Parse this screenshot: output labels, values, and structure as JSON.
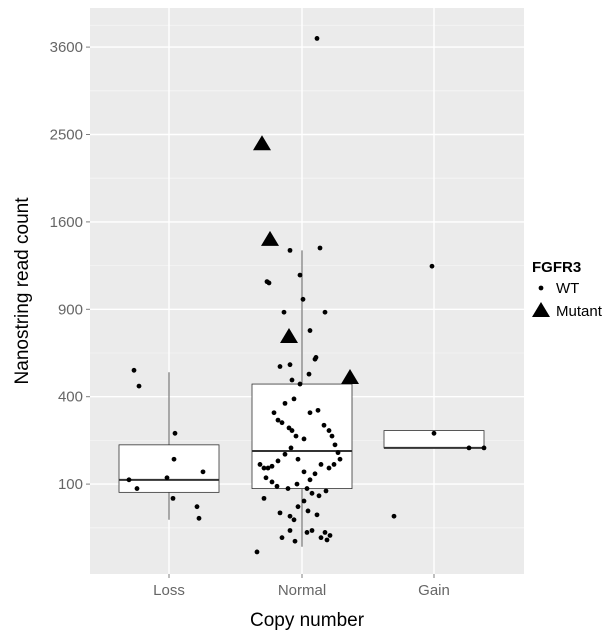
{
  "chart_data": {
    "type": "box+scatter",
    "xlabel": "Copy number",
    "ylabel": "Nanostring read count",
    "y_scale": "sqrt",
    "ylim": [
      0,
      4000
    ],
    "y_ticks": [
      100,
      400,
      900,
      1600,
      2500,
      3600
    ],
    "y_tick_labels": [
      "100",
      "400",
      "900",
      "1600",
      "2500",
      "3600"
    ],
    "categories": [
      "Loss",
      "Normal",
      "Gain"
    ],
    "grid": true,
    "legend": {
      "title": "FGFR3",
      "position": "right",
      "entries": [
        {
          "label": "WT",
          "shape": "dot"
        },
        {
          "label": "Mutant",
          "shape": "triangle"
        }
      ]
    },
    "boxes": [
      {
        "category": "Loss",
        "q1": 82,
        "median": 110,
        "q3": 210,
        "whisker_low": 35,
        "whisker_high": 520
      },
      {
        "category": "Normal",
        "q1": 90,
        "median": 190,
        "q3": 460,
        "whisker_low": 8,
        "whisker_high": 1350
      },
      {
        "category": "Gain",
        "q1": 200,
        "median": 200,
        "q3": 260,
        "whisker_low": 200,
        "whisker_high": 260
      }
    ],
    "points": [
      {
        "category": "Loss",
        "offset": -0.35,
        "y": 530,
        "group": "WT"
      },
      {
        "category": "Loss",
        "offset": -0.3,
        "y": 450,
        "group": "WT"
      },
      {
        "category": "Loss",
        "offset": -0.4,
        "y": 110,
        "group": "WT"
      },
      {
        "category": "Loss",
        "offset": -0.32,
        "y": 90,
        "group": "WT"
      },
      {
        "category": "Loss",
        "offset": -0.02,
        "y": 115,
        "group": "WT"
      },
      {
        "category": "Loss",
        "offset": 0.06,
        "y": 250,
        "group": "WT"
      },
      {
        "category": "Loss",
        "offset": 0.05,
        "y": 165,
        "group": "WT"
      },
      {
        "category": "Loss",
        "offset": 0.04,
        "y": 70,
        "group": "WT"
      },
      {
        "category": "Loss",
        "offset": 0.34,
        "y": 130,
        "group": "WT"
      },
      {
        "category": "Loss",
        "offset": 0.28,
        "y": 55,
        "group": "WT"
      },
      {
        "category": "Loss",
        "offset": 0.3,
        "y": 37,
        "group": "WT"
      },
      {
        "category": "Normal",
        "offset": -0.35,
        "y": 1100,
        "group": "WT"
      },
      {
        "category": "Normal",
        "offset": -0.33,
        "y": 1090,
        "group": "WT"
      },
      {
        "category": "Normal",
        "offset": -0.18,
        "y": 880,
        "group": "WT"
      },
      {
        "category": "Normal",
        "offset": -0.12,
        "y": 1350,
        "group": "WT"
      },
      {
        "category": "Normal",
        "offset": -0.02,
        "y": 1150,
        "group": "WT"
      },
      {
        "category": "Normal",
        "offset": 0.01,
        "y": 970,
        "group": "WT"
      },
      {
        "category": "Normal",
        "offset": 0.08,
        "y": 760,
        "group": "WT"
      },
      {
        "category": "Normal",
        "offset": 0.18,
        "y": 1370,
        "group": "WT"
      },
      {
        "category": "Normal",
        "offset": 0.23,
        "y": 880,
        "group": "WT"
      },
      {
        "category": "Normal",
        "offset": 0.15,
        "y": 3720,
        "group": "WT"
      },
      {
        "category": "Normal",
        "offset": 0.14,
        "y": 600,
        "group": "WT"
      },
      {
        "category": "Normal",
        "offset": 0.13,
        "y": 590,
        "group": "WT"
      },
      {
        "category": "Normal",
        "offset": 0.07,
        "y": 510,
        "group": "WT"
      },
      {
        "category": "Normal",
        "offset": -0.1,
        "y": 480,
        "group": "WT"
      },
      {
        "category": "Normal",
        "offset": -0.12,
        "y": 560,
        "group": "WT"
      },
      {
        "category": "Normal",
        "offset": -0.22,
        "y": 550,
        "group": "WT"
      },
      {
        "category": "Normal",
        "offset": -0.02,
        "y": 460,
        "group": "WT"
      },
      {
        "category": "Normal",
        "offset": -0.08,
        "y": 390,
        "group": "WT"
      },
      {
        "category": "Normal",
        "offset": -0.17,
        "y": 370,
        "group": "WT"
      },
      {
        "category": "Normal",
        "offset": -0.28,
        "y": 330,
        "group": "WT"
      },
      {
        "category": "Normal",
        "offset": -0.24,
        "y": 300,
        "group": "WT"
      },
      {
        "category": "Normal",
        "offset": -0.2,
        "y": 290,
        "group": "WT"
      },
      {
        "category": "Normal",
        "offset": -0.13,
        "y": 270,
        "group": "WT"
      },
      {
        "category": "Normal",
        "offset": -0.1,
        "y": 260,
        "group": "WT"
      },
      {
        "category": "Normal",
        "offset": -0.06,
        "y": 240,
        "group": "WT"
      },
      {
        "category": "Normal",
        "offset": 0.02,
        "y": 230,
        "group": "WT"
      },
      {
        "category": "Normal",
        "offset": 0.08,
        "y": 330,
        "group": "WT"
      },
      {
        "category": "Normal",
        "offset": 0.16,
        "y": 340,
        "group": "WT"
      },
      {
        "category": "Normal",
        "offset": 0.22,
        "y": 280,
        "group": "WT"
      },
      {
        "category": "Normal",
        "offset": 0.27,
        "y": 260,
        "group": "WT"
      },
      {
        "category": "Normal",
        "offset": 0.3,
        "y": 240,
        "group": "WT"
      },
      {
        "category": "Normal",
        "offset": 0.33,
        "y": 210,
        "group": "WT"
      },
      {
        "category": "Normal",
        "offset": 0.36,
        "y": 185,
        "group": "WT"
      },
      {
        "category": "Normal",
        "offset": 0.38,
        "y": 165,
        "group": "WT"
      },
      {
        "category": "Normal",
        "offset": 0.32,
        "y": 150,
        "group": "WT"
      },
      {
        "category": "Normal",
        "offset": 0.27,
        "y": 140,
        "group": "WT"
      },
      {
        "category": "Normal",
        "offset": 0.19,
        "y": 150,
        "group": "WT"
      },
      {
        "category": "Normal",
        "offset": 0.13,
        "y": 125,
        "group": "WT"
      },
      {
        "category": "Normal",
        "offset": 0.08,
        "y": 110,
        "group": "WT"
      },
      {
        "category": "Normal",
        "offset": 0.02,
        "y": 130,
        "group": "WT"
      },
      {
        "category": "Normal",
        "offset": -0.04,
        "y": 165,
        "group": "WT"
      },
      {
        "category": "Normal",
        "offset": -0.11,
        "y": 200,
        "group": "WT"
      },
      {
        "category": "Normal",
        "offset": -0.17,
        "y": 180,
        "group": "WT"
      },
      {
        "category": "Normal",
        "offset": -0.24,
        "y": 160,
        "group": "WT"
      },
      {
        "category": "Normal",
        "offset": -0.3,
        "y": 145,
        "group": "WT"
      },
      {
        "category": "Normal",
        "offset": -0.34,
        "y": 140,
        "group": "WT"
      },
      {
        "category": "Normal",
        "offset": -0.38,
        "y": 140,
        "group": "WT"
      },
      {
        "category": "Normal",
        "offset": -0.42,
        "y": 150,
        "group": "WT"
      },
      {
        "category": "Normal",
        "offset": -0.36,
        "y": 115,
        "group": "WT"
      },
      {
        "category": "Normal",
        "offset": -0.3,
        "y": 105,
        "group": "WT"
      },
      {
        "category": "Normal",
        "offset": -0.25,
        "y": 95,
        "group": "WT"
      },
      {
        "category": "Normal",
        "offset": -0.14,
        "y": 90,
        "group": "WT"
      },
      {
        "category": "Normal",
        "offset": -0.05,
        "y": 100,
        "group": "WT"
      },
      {
        "category": "Normal",
        "offset": 0.05,
        "y": 90,
        "group": "WT"
      },
      {
        "category": "Normal",
        "offset": 0.1,
        "y": 80,
        "group": "WT"
      },
      {
        "category": "Normal",
        "offset": 0.17,
        "y": 75,
        "group": "WT"
      },
      {
        "category": "Normal",
        "offset": 0.24,
        "y": 85,
        "group": "WT"
      },
      {
        "category": "Normal",
        "offset": -0.38,
        "y": 70,
        "group": "WT"
      },
      {
        "category": "Normal",
        "offset": -0.22,
        "y": 45,
        "group": "WT"
      },
      {
        "category": "Normal",
        "offset": -0.12,
        "y": 40,
        "group": "WT"
      },
      {
        "category": "Normal",
        "offset": -0.08,
        "y": 35,
        "group": "WT"
      },
      {
        "category": "Normal",
        "offset": -0.04,
        "y": 55,
        "group": "WT"
      },
      {
        "category": "Normal",
        "offset": 0.02,
        "y": 65,
        "group": "WT"
      },
      {
        "category": "Normal",
        "offset": 0.06,
        "y": 48,
        "group": "WT"
      },
      {
        "category": "Normal",
        "offset": 0.1,
        "y": 22,
        "group": "WT"
      },
      {
        "category": "Normal",
        "offset": 0.15,
        "y": 42,
        "group": "WT"
      },
      {
        "category": "Normal",
        "offset": 0.19,
        "y": 15,
        "group": "WT"
      },
      {
        "category": "Normal",
        "offset": 0.23,
        "y": 20,
        "group": "WT"
      },
      {
        "category": "Normal",
        "offset": 0.25,
        "y": 13,
        "group": "WT"
      },
      {
        "category": "Normal",
        "offset": 0.28,
        "y": 17,
        "group": "WT"
      },
      {
        "category": "Normal",
        "offset": -0.12,
        "y": 22,
        "group": "WT"
      },
      {
        "category": "Normal",
        "offset": -0.07,
        "y": 12,
        "group": "WT"
      },
      {
        "category": "Normal",
        "offset": -0.2,
        "y": 15,
        "group": "WT"
      },
      {
        "category": "Normal",
        "offset": -0.45,
        "y": 5,
        "group": "WT"
      },
      {
        "category": "Normal",
        "offset": 0.05,
        "y": 20,
        "group": "WT"
      },
      {
        "category": "Gain",
        "offset": -0.02,
        "y": 1220,
        "group": "WT"
      },
      {
        "category": "Gain",
        "offset": 0.0,
        "y": 250,
        "group": "WT"
      },
      {
        "category": "Gain",
        "offset": 0.35,
        "y": 200,
        "group": "WT"
      },
      {
        "category": "Gain",
        "offset": 0.5,
        "y": 200,
        "group": "WT"
      },
      {
        "category": "Gain",
        "offset": -0.4,
        "y": 40,
        "group": "WT"
      },
      {
        "category": "Normal",
        "offset": -0.4,
        "y": 2390,
        "group": "Mutant"
      },
      {
        "category": "Normal",
        "offset": -0.32,
        "y": 1440,
        "group": "Mutant"
      },
      {
        "category": "Normal",
        "offset": -0.13,
        "y": 720,
        "group": "Mutant"
      },
      {
        "category": "Normal",
        "offset": 0.48,
        "y": 490,
        "group": "Mutant"
      }
    ]
  }
}
